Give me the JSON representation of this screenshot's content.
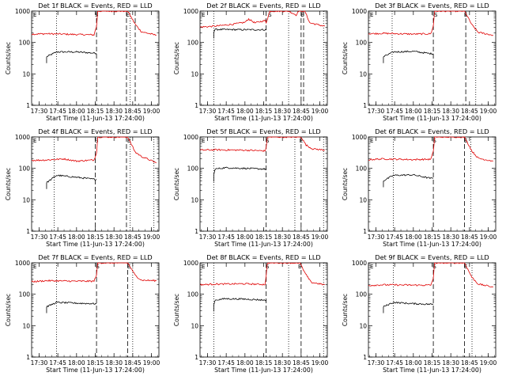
{
  "figure": {
    "x_ticks": [
      "17:30",
      "17:45",
      "18:00",
      "18:15",
      "18:30",
      "18:45",
      "19:00"
    ],
    "y_ticks": [
      "1",
      "10",
      "100",
      "1000"
    ],
    "xlabel": "Start Time (11-Jun-13 17:24:00)",
    "ylabel": "Counts/sec",
    "colors": {
      "events": "#000000",
      "lld": "#e00000"
    }
  },
  "chart_data": [
    {
      "type": "line",
      "title": "Det 1f BLACK = Events, RED = LLD",
      "xlabel": "Start Time (11-Jun-13 17:24:00)",
      "ylabel": "Counts/sec",
      "xlim": [
        "17:24",
        "19:06"
      ],
      "ylim": [
        1,
        1000
      ],
      "y_scale": "log",
      "vlines_dotted": [
        "17:44",
        "18:43"
      ],
      "vlines_dashed": [
        "18:16",
        "18:40",
        "18:47"
      ],
      "markers": [
        {
          "label": "S",
          "x": "18:16"
        },
        {
          "label": "E",
          "x": "18:41"
        }
      ],
      "series": [
        {
          "name": "Events",
          "x": [
            "17:36",
            "17:44",
            "18:00",
            "18:14",
            "18:16"
          ],
          "y": [
            35,
            50,
            50,
            46,
            45
          ]
        },
        {
          "name": "LLD",
          "x": [
            "17:24",
            "17:36",
            "18:00",
            "18:14",
            "18:16",
            "18:17",
            "18:40",
            "18:41",
            "18:47",
            "18:52",
            "19:04"
          ],
          "y": [
            185,
            190,
            180,
            175,
            330,
            1000,
            1000,
            1000,
            380,
            220,
            170
          ]
        }
      ]
    },
    {
      "type": "line",
      "title": "Det 2f BLACK = Events, RED = LLD",
      "xlabel": "Start Time (11-Jun-13 17:24:00)",
      "ylabel": "Counts/sec",
      "xlim": [
        "17:24",
        "19:06"
      ],
      "ylim": [
        1,
        1000
      ],
      "y_scale": "log",
      "vlines_dotted": [
        "17:35",
        "18:35",
        "19:03"
      ],
      "vlines_dashed": [
        "18:17",
        "18:45",
        "18:47"
      ],
      "markers": [
        {
          "label": "S",
          "x": "18:20"
        },
        {
          "label": "E",
          "x": "18:46"
        }
      ],
      "series": [
        {
          "name": "Events",
          "x": [
            "17:35",
            "17:36",
            "18:00",
            "18:16",
            "18:17"
          ],
          "y": [
            215,
            260,
            255,
            255,
            250
          ]
        },
        {
          "name": "LLD",
          "x": [
            "17:24",
            "17:36",
            "17:50",
            "18:00",
            "18:03",
            "18:08",
            "18:16",
            "18:17",
            "18:20",
            "18:35",
            "18:41",
            "18:43",
            "18:48",
            "18:52",
            "19:04"
          ],
          "y": [
            310,
            330,
            380,
            440,
            560,
            420,
            500,
            430,
            1000,
            1000,
            750,
            1000,
            1000,
            420,
            330
          ]
        }
      ]
    },
    {
      "type": "line",
      "title": "Det 3f BLACK = Events, RED = LLD",
      "xlabel": "Start Time (11-Jun-13 17:24:00)",
      "ylabel": "Counts/sec",
      "xlim": [
        "17:24",
        "19:06"
      ],
      "ylim": [
        1,
        1000
      ],
      "y_scale": "log",
      "vlines_dotted": [
        "17:43",
        "18:50"
      ],
      "vlines_dashed": [
        "18:16",
        "18:42"
      ],
      "markers": [
        {
          "label": "S",
          "x": "18:18"
        },
        {
          "label": "E",
          "x": "18:42"
        }
      ],
      "series": [
        {
          "name": "Events",
          "x": [
            "17:36",
            "17:44",
            "18:00",
            "18:14",
            "18:16"
          ],
          "y": [
            35,
            50,
            52,
            44,
            44
          ]
        },
        {
          "name": "LLD",
          "x": [
            "17:24",
            "17:36",
            "18:00",
            "18:14",
            "18:16",
            "18:17",
            "18:40",
            "18:41",
            "18:47",
            "18:52",
            "19:04"
          ],
          "y": [
            190,
            195,
            185,
            190,
            340,
            1000,
            1000,
            1000,
            360,
            210,
            170
          ]
        }
      ]
    },
    {
      "type": "line",
      "title": "Det 4f BLACK = Events, RED = LLD",
      "xlabel": "Start Time (11-Jun-13 17:24:00)",
      "ylabel": "Counts/sec",
      "xlim": [
        "17:24",
        "19:06"
      ],
      "ylim": [
        1,
        1000
      ],
      "y_scale": "log",
      "vlines_dotted": [
        "17:42",
        "18:43",
        "19:02"
      ],
      "vlines_dashed": [
        "18:15",
        "18:40"
      ],
      "markers": [
        {
          "label": "S",
          "x": "18:16"
        },
        {
          "label": "E",
          "x": "18:42"
        }
      ],
      "series": [
        {
          "name": "Events",
          "x": [
            "17:36",
            "17:44",
            "18:00",
            "18:14",
            "18:16"
          ],
          "y": [
            35,
            60,
            52,
            45,
            45
          ]
        },
        {
          "name": "LLD",
          "x": [
            "17:24",
            "17:36",
            "17:50",
            "18:00",
            "18:14",
            "18:16",
            "18:17",
            "18:40",
            "18:41",
            "18:47",
            "18:52",
            "19:04"
          ],
          "y": [
            180,
            185,
            200,
            170,
            185,
            320,
            1000,
            1000,
            1000,
            330,
            240,
            150
          ]
        }
      ]
    },
    {
      "type": "line",
      "title": "Det 5f BLACK = Events, RED = LLD",
      "xlabel": "Start Time (11-Jun-13 17:24:00)",
      "ylabel": "Counts/sec",
      "xlim": [
        "17:24",
        "19:06"
      ],
      "ylim": [
        1,
        1000
      ],
      "y_scale": "log",
      "vlines_dotted": [
        "17:35",
        "18:40",
        "19:03"
      ],
      "vlines_dashed": [
        "18:17",
        "18:45"
      ],
      "markers": [
        {
          "label": "S",
          "x": "18:18"
        },
        {
          "label": "E",
          "x": "18:45"
        }
      ],
      "series": [
        {
          "name": "Events",
          "x": [
            "17:35",
            "17:36",
            "17:44",
            "18:00",
            "18:16",
            "18:17"
          ],
          "y": [
            60,
            95,
            105,
            100,
            95,
            95
          ]
        },
        {
          "name": "LLD",
          "x": [
            "17:24",
            "17:36",
            "18:00",
            "18:16",
            "18:17",
            "18:18",
            "18:43",
            "18:45",
            "18:49",
            "18:54",
            "19:04"
          ],
          "y": [
            380,
            390,
            380,
            360,
            450,
            1000,
            1000,
            1000,
            550,
            420,
            380
          ]
        }
      ]
    },
    {
      "type": "line",
      "title": "Det 6f BLACK = Events, RED = LLD",
      "xlabel": "Start Time (11-Jun-13 17:24:00)",
      "ylabel": "Counts/sec",
      "xlim": [
        "17:24",
        "19:06"
      ],
      "ylim": [
        1,
        1000
      ],
      "y_scale": "log",
      "vlines_dotted": [
        "17:44",
        "18:46"
      ],
      "vlines_dashed": [
        "18:16",
        "18:41"
      ],
      "markers": [
        {
          "label": "S",
          "x": "18:17"
        },
        {
          "label": "E",
          "x": "18:42"
        }
      ],
      "series": [
        {
          "name": "Events",
          "x": [
            "17:36",
            "17:44",
            "18:00",
            "18:14",
            "18:16"
          ],
          "y": [
            40,
            60,
            62,
            48,
            48
          ]
        },
        {
          "name": "LLD",
          "x": [
            "17:24",
            "17:36",
            "18:00",
            "18:14",
            "18:16",
            "18:17",
            "18:40",
            "18:41",
            "18:47",
            "18:52",
            "19:04"
          ],
          "y": [
            190,
            200,
            190,
            195,
            340,
            1000,
            1000,
            1000,
            350,
            210,
            170
          ]
        }
      ]
    },
    {
      "type": "line",
      "title": "Det 7f BLACK = Events, RED = LLD",
      "xlabel": "Start Time (11-Jun-13 17:24:00)",
      "ylabel": "Counts/sec",
      "xlim": [
        "17:24",
        "19:06"
      ],
      "ylim": [
        1,
        1000
      ],
      "y_scale": "log",
      "vlines_dotted": [
        "17:44",
        "18:45"
      ],
      "vlines_dashed": [
        "18:16",
        "18:41"
      ],
      "markers": [
        {
          "label": "S",
          "x": "18:17"
        },
        {
          "label": "E",
          "x": "18:42"
        }
      ],
      "series": [
        {
          "name": "Events",
          "x": [
            "17:36",
            "17:44",
            "18:00",
            "18:14",
            "18:16"
          ],
          "y": [
            40,
            55,
            52,
            50,
            50
          ]
        },
        {
          "name": "LLD",
          "x": [
            "17:24",
            "17:36",
            "18:00",
            "18:14",
            "18:16",
            "18:17",
            "18:40",
            "18:41",
            "18:47",
            "18:52",
            "19:04"
          ],
          "y": [
            250,
            270,
            260,
            260,
            420,
            1000,
            1000,
            1000,
            400,
            280,
            270
          ]
        }
      ]
    },
    {
      "type": "line",
      "title": "Det 8f BLACK = Events, RED = LLD",
      "xlabel": "Start Time (11-Jun-13 17:24:00)",
      "ylabel": "Counts/sec",
      "xlim": [
        "17:24",
        "19:06"
      ],
      "ylim": [
        1,
        1000
      ],
      "y_scale": "log",
      "vlines_dotted": [
        "17:35",
        "18:35",
        "19:03"
      ],
      "vlines_dashed": [
        "18:17",
        "18:45"
      ],
      "markers": [
        {
          "label": "S",
          "x": "18:18"
        },
        {
          "label": "E",
          "x": "18:44"
        }
      ],
      "series": [
        {
          "name": "Events",
          "x": [
            "17:35",
            "17:36",
            "17:44",
            "18:00",
            "18:16",
            "18:17"
          ],
          "y": [
            45,
            65,
            72,
            70,
            65,
            65
          ]
        },
        {
          "name": "LLD",
          "x": [
            "17:24",
            "17:36",
            "18:00",
            "18:16",
            "18:17",
            "18:18",
            "18:42",
            "18:44",
            "18:48",
            "18:53",
            "19:04"
          ],
          "y": [
            200,
            210,
            215,
            205,
            380,
            1000,
            1000,
            1000,
            480,
            240,
            200
          ]
        }
      ]
    },
    {
      "type": "line",
      "title": "Det 9f BLACK = Events, RED = LLD",
      "xlabel": "Start Time (11-Jun-13 17:24:00)",
      "ylabel": "Counts/sec",
      "xlim": [
        "17:24",
        "19:06"
      ],
      "ylim": [
        1,
        1000
      ],
      "y_scale": "log",
      "vlines_dotted": [
        "17:44",
        "18:47"
      ],
      "vlines_dashed": [
        "18:16",
        "18:41"
      ],
      "markers": [
        {
          "label": "S",
          "x": "18:17"
        },
        {
          "label": "E",
          "x": "18:42"
        }
      ],
      "series": [
        {
          "name": "Events",
          "x": [
            "17:36",
            "17:44",
            "18:00",
            "18:14",
            "18:16"
          ],
          "y": [
            40,
            55,
            50,
            48,
            48
          ]
        },
        {
          "name": "LLD",
          "x": [
            "17:24",
            "17:36",
            "18:00",
            "18:14",
            "18:16",
            "18:17",
            "18:40",
            "18:41",
            "18:47",
            "18:52",
            "19:04"
          ],
          "y": [
            190,
            200,
            195,
            195,
            330,
            1000,
            1000,
            1000,
            340,
            210,
            170
          ]
        }
      ]
    }
  ]
}
